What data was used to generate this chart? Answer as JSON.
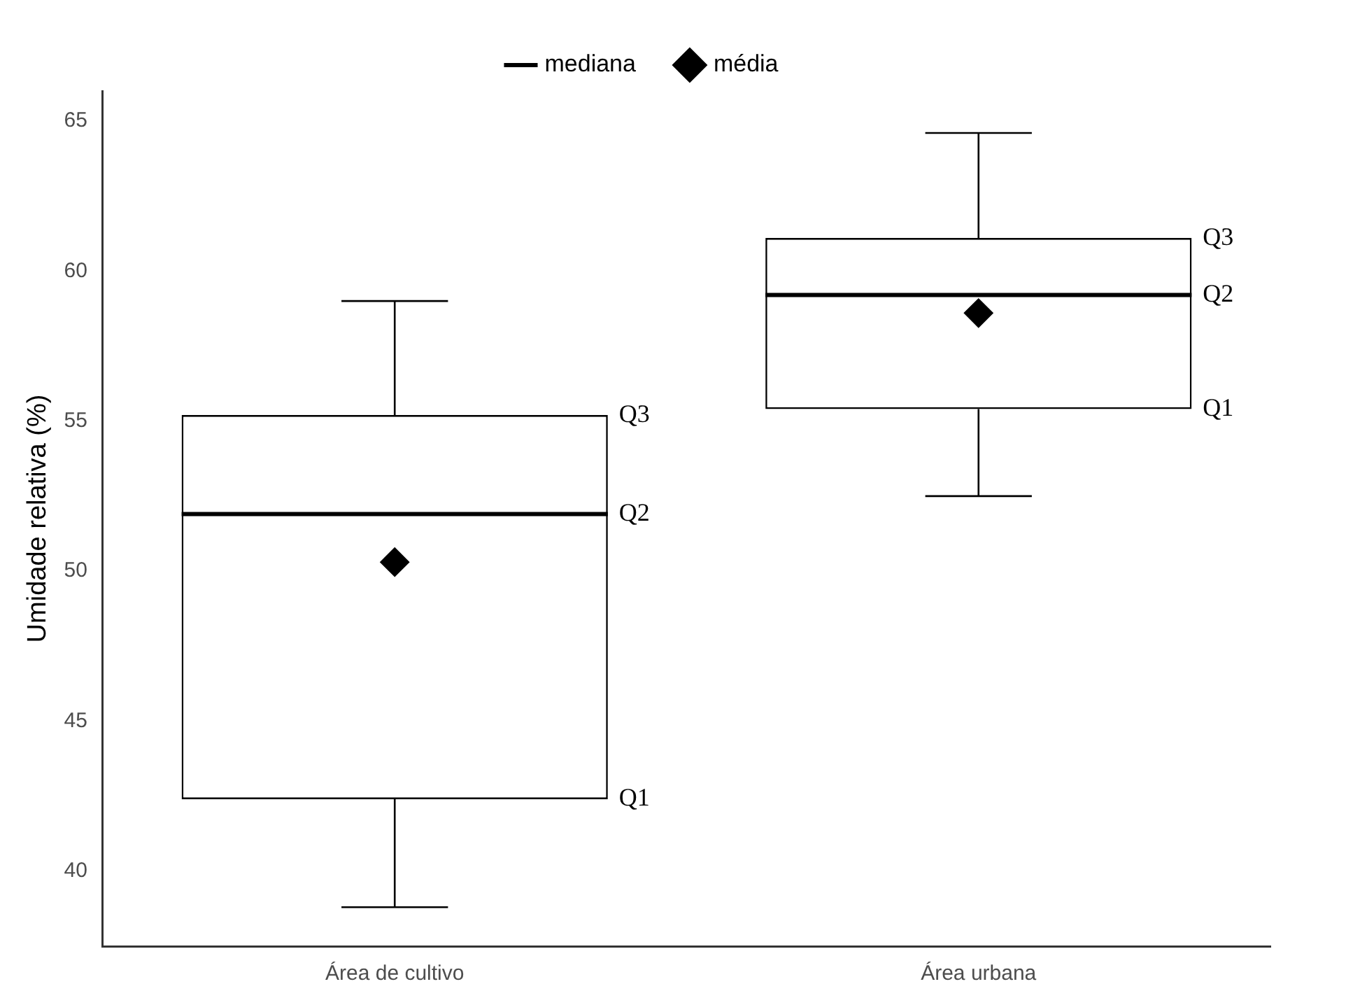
{
  "chart_data": {
    "type": "box",
    "ylabel": "Umidade relativa (%)",
    "categories": [
      "Área de cultivo",
      "Área urbana"
    ],
    "series": [
      {
        "name": "mediana",
        "color": "#000000",
        "boxes": [
          {
            "low": 38.8,
            "q1": 42.4,
            "median": 51.9,
            "q3": 55.2,
            "high": 59.0
          },
          {
            "low": 52.5,
            "q1": 55.4,
            "median": 59.2,
            "q3": 61.1,
            "high": 64.6
          }
        ]
      },
      {
        "name": "média",
        "type": "scatter",
        "color": "#000000",
        "marker": "diamond",
        "x": [
          "Área de cultivo",
          "Área urbana"
        ],
        "values": [
          50.3,
          58.6
        ]
      }
    ],
    "ylim": [
      37.5,
      66
    ],
    "yticks": [
      40,
      45,
      50,
      55,
      60,
      65
    ],
    "grid": false,
    "legend": "top",
    "annotations": [
      "Q3",
      "Q2",
      "Q1",
      "Q3",
      "Q2",
      "Q1"
    ]
  }
}
